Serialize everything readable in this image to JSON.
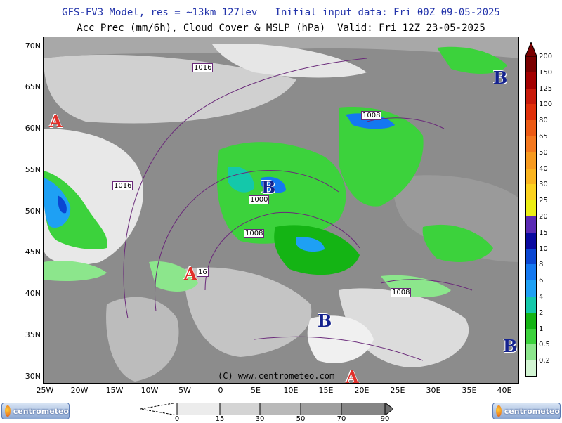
{
  "header": {
    "line1": "GFS-FV3 Model, res = ~13km 127lev   Initial input data: Fri 00Z 09-05-2025",
    "line2": "Acc Prec (mm/6h), Cloud Cover & MSLP (hPa)  Valid: Fri 12Z 23-05-2025"
  },
  "lat_labels": [
    "70N",
    "65N",
    "60N",
    "55N",
    "50N",
    "45N",
    "40N",
    "35N",
    "30N"
  ],
  "lon_labels": [
    "25W",
    "20W",
    "15W",
    "10W",
    "5W",
    "0",
    "5E",
    "10E",
    "15E",
    "20E",
    "25E",
    "30E",
    "35E",
    "40E"
  ],
  "pressure_centers": [
    {
      "label": "A",
      "type": "high"
    },
    {
      "label": "A",
      "type": "high"
    },
    {
      "label": "A",
      "type": "high"
    },
    {
      "label": "B",
      "type": "low"
    },
    {
      "label": "B",
      "type": "low"
    },
    {
      "label": "B",
      "type": "low"
    },
    {
      "label": "B",
      "type": "low"
    }
  ],
  "isobar_labels": [
    "1016",
    "1016",
    "1008",
    "1000",
    "1008",
    "1008",
    "16"
  ],
  "copyright": "(C) www.centrometeo.com",
  "precip_scale": {
    "labels": [
      "200",
      "150",
      "125",
      "100",
      "80",
      "65",
      "50",
      "40",
      "30",
      "25",
      "20",
      "15",
      "10",
      "8",
      "6",
      "4",
      "2",
      "1",
      "0.5",
      "0.2"
    ],
    "colors": [
      "#ffffff",
      "#7a0000",
      "#a30000",
      "#c81a0a",
      "#e0300a",
      "#ec5a14",
      "#f4781e",
      "#f79a1e",
      "#fab41e",
      "#fcd21e",
      "#ecee14",
      "#5a2ab4",
      "#0a0aa0",
      "#0a46d2",
      "#1478f0",
      "#1ea0f4",
      "#14c8aa",
      "#14b414",
      "#3cd23c",
      "#8ce68c",
      "#d2f5d2"
    ]
  },
  "cloud_scale": {
    "labels": [
      "0",
      "15",
      "30",
      "50",
      "70",
      "90"
    ],
    "colors": [
      "#ececec",
      "#d4d4d4",
      "#b9b9b9",
      "#9f9f9f",
      "#858585"
    ]
  },
  "logo_text": "centrometeo"
}
